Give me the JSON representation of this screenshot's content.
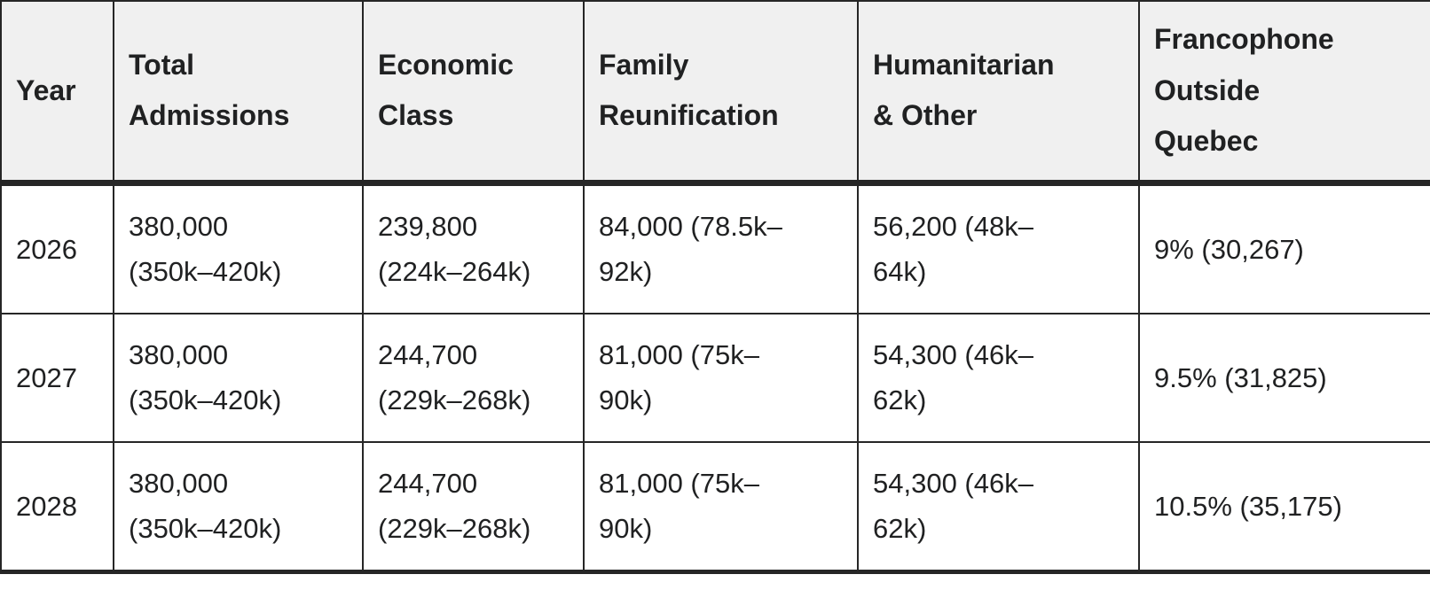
{
  "colors": {
    "header_background": "#f0f0f0",
    "border": "#262626",
    "text": "#202122",
    "body_background": "#ffffff"
  },
  "table": {
    "columns": [
      {
        "label": "Year"
      },
      {
        "label": "Total\nAdmissions"
      },
      {
        "label": "Economic\nClass"
      },
      {
        "label": "Family\nReunification"
      },
      {
        "label": "Humanitarian\n& Other"
      },
      {
        "label": "Francophone\nOutside\nQuebec"
      }
    ],
    "rows": [
      {
        "cells": [
          "2026",
          "380,000\n(350k–420k)",
          "239,800\n(224k–264k)",
          "84,000 (78.5k–\n92k)",
          "56,200 (48k–\n64k)",
          "9% (30,267)"
        ]
      },
      {
        "cells": [
          "2027",
          "380,000\n(350k–420k)",
          "244,700\n(229k–268k)",
          "81,000 (75k–\n90k)",
          "54,300 (46k–\n62k)",
          "9.5% (31,825)"
        ]
      },
      {
        "cells": [
          "2028",
          "380,000\n(350k–420k)",
          "244,700\n(229k–268k)",
          "81,000 (75k–\n90k)",
          "54,300 (46k–\n62k)",
          "10.5% (35,175)"
        ]
      }
    ]
  }
}
